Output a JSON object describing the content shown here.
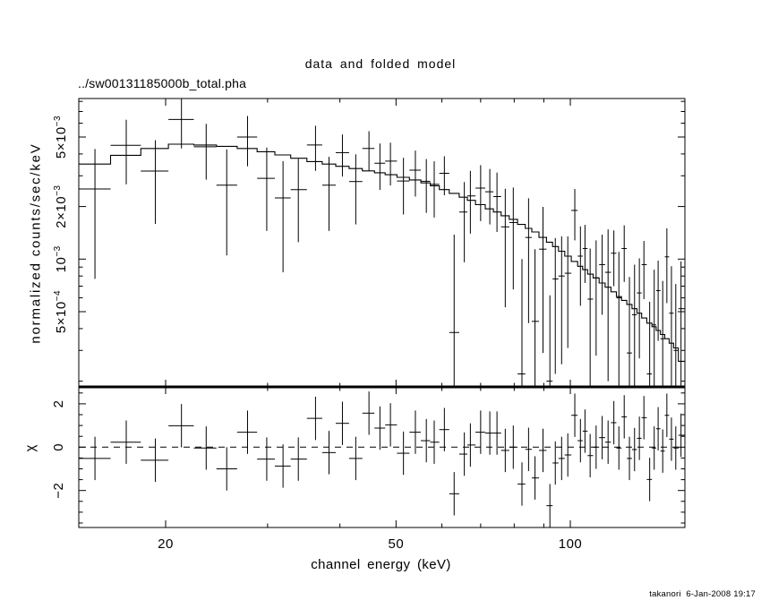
{
  "colors": {
    "foreground": "#000000",
    "background": "#ffffff"
  },
  "header": {
    "title": "data and folded model",
    "subtitle": "../sw00131185000b_total.pha"
  },
  "footer": {
    "timestamp": "takanori  6-Jan-2008 19:17"
  },
  "axes": {
    "x": {
      "label": "channel energy (keV)",
      "scale": "log",
      "min": 14.17,
      "max": 158,
      "major_ticks": [
        20,
        50,
        100
      ],
      "minor_ticks": [
        30,
        40,
        60,
        70,
        80,
        90
      ],
      "tick_labels": [
        {
          "value": 20,
          "label": "20"
        },
        {
          "value": 50,
          "label": "50"
        },
        {
          "value": 100,
          "label": "100"
        }
      ]
    },
    "y_top": {
      "label": "normalized counts/sec/keV",
      "scale": "log",
      "min": 0.000186,
      "max": 0.0083,
      "major_ticks": [
        0.005,
        0.002,
        0.001,
        0.0005
      ],
      "minor_ticks": [
        0.008,
        0.007,
        0.006,
        0.004,
        0.003,
        0.0009,
        0.0008,
        0.0007,
        0.0006,
        0.0004,
        0.0003,
        0.0002
      ],
      "tick_labels": [
        {
          "value": 0.005,
          "base": "5×10",
          "exp": "−3"
        },
        {
          "value": 0.002,
          "base": "2×10",
          "exp": "−3"
        },
        {
          "value": 0.001,
          "base": "10",
          "exp": "−3"
        },
        {
          "value": 0.0005,
          "base": "5×10",
          "exp": "−4"
        }
      ]
    },
    "y_bottom": {
      "label": "χ",
      "scale": "linear",
      "min": -3.7,
      "max": 2.78,
      "major_ticks": [
        2,
        0,
        -2
      ],
      "minor_ticks": [
        2.5,
        1.5,
        1,
        0.5,
        -0.5,
        -1,
        -1.5,
        -2.5,
        -3,
        -3.5
      ],
      "tick_labels": [
        {
          "value": 2,
          "label": "2"
        },
        {
          "value": 0,
          "label": "0"
        },
        {
          "value": -2,
          "label": "−2"
        }
      ],
      "zero_line": "dashed"
    }
  },
  "chart_data": {
    "type": "spectrum_with_residuals",
    "top_panel": {
      "kind": "histogram_model_plus_errorbar_data",
      "x_scale": "log",
      "y_scale": "log",
      "x_range": [
        14.17,
        158
      ],
      "y_range": [
        0.000186,
        0.0083
      ]
    },
    "bottom_panel": {
      "kind": "delchi_residuals",
      "y_range": [
        -3.7,
        2.78
      ],
      "chi_err": 1,
      "zero_line": true
    },
    "bin_columns": [
      "energy_keV",
      "rate_counts_s_keV",
      "rate_err",
      "model_rate",
      "chi"
    ],
    "bins": [
      [
        15.1,
        0.00252,
        0.00175,
        0.0035,
        -0.52
      ],
      [
        17.1,
        0.00448,
        0.0018,
        0.00393,
        0.23
      ],
      [
        19.2,
        0.00319,
        0.0016,
        0.0043,
        -0.6
      ],
      [
        21.3,
        0.0063,
        0.002,
        0.00455,
        0.99
      ],
      [
        23.5,
        0.0044,
        0.00155,
        0.0045,
        -0.04
      ],
      [
        25.5,
        0.00265,
        0.0016,
        0.00442,
        -1.0
      ],
      [
        27.7,
        0.005,
        0.0016,
        0.0043,
        0.69
      ],
      [
        29.9,
        0.0029,
        0.00145,
        0.00412,
        -0.55
      ],
      [
        31.9,
        0.00224,
        0.0014,
        0.00395,
        -0.87
      ],
      [
        33.9,
        0.0025,
        0.00125,
        0.00378,
        -0.55
      ],
      [
        36.3,
        0.0045,
        0.0013,
        0.00362,
        1.33
      ],
      [
        38.3,
        0.00265,
        0.0012,
        0.0035,
        -0.25
      ],
      [
        40.4,
        0.00407,
        0.0011,
        0.0034,
        1.1
      ],
      [
        42.6,
        0.00278,
        0.0012,
        0.0033,
        -0.52
      ],
      [
        44.9,
        0.0043,
        0.0011,
        0.0032,
        1.57
      ],
      [
        46.9,
        0.00354,
        0.00105,
        0.00312,
        0.88
      ],
      [
        48.9,
        0.00364,
        0.001,
        0.00304,
        1.03
      ],
      [
        51.5,
        0.0028,
        0.001,
        0.00294,
        -0.28
      ],
      [
        54.0,
        0.00323,
        0.00095,
        0.00284,
        0.69
      ],
      [
        56.4,
        0.00279,
        0.00095,
        0.00273,
        0.3
      ],
      [
        58.2,
        0.00268,
        0.00095,
        0.00263,
        0.23
      ],
      [
        60.6,
        0.0031,
        0.00078,
        0.0025,
        0.81
      ],
      [
        63.0,
        0.00038,
        0.001,
        0.00238,
        -2.15
      ],
      [
        65.6,
        0.00186,
        0.0009,
        0.00226,
        -0.32
      ],
      [
        67.2,
        0.0023,
        0.0009,
        0.00217,
        0.1
      ],
      [
        70.0,
        0.00255,
        0.0009,
        0.00205,
        0.69
      ],
      [
        72.6,
        0.00243,
        0.00085,
        0.00194,
        0.65
      ],
      [
        74.7,
        0.00228,
        0.00085,
        0.00186,
        0.65
      ],
      [
        77.2,
        0.00153,
        0.001,
        0.00177,
        -0.15
      ],
      [
        79.7,
        0.00162,
        0.00095,
        0.00169,
        0.0
      ],
      [
        82.5,
        0.00022,
        0.00078,
        0.00158,
        -1.7
      ],
      [
        84.7,
        0.00133,
        0.0009,
        0.0015,
        -0.1
      ],
      [
        86.9,
        0.00044,
        0.0007,
        0.00143,
        -1.42
      ],
      [
        89.7,
        0.00114,
        0.00085,
        0.00133,
        -0.15
      ],
      [
        92.2,
        0.0002,
        0.00042,
        0.00125,
        -2.7
      ],
      [
        94.2,
        0.00077,
        0.00055,
        0.00118,
        -0.73
      ],
      [
        96.6,
        0.0008,
        0.00055,
        0.00111,
        -0.52
      ],
      [
        99.0,
        0.00083,
        0.00052,
        0.00104,
        -0.36
      ],
      [
        101.8,
        0.0019,
        0.00062,
        0.00097,
        1.47
      ],
      [
        104.1,
        0.00104,
        0.0005,
        0.00091,
        0.3
      ],
      [
        106.0,
        0.00115,
        0.00042,
        0.00087,
        0.74
      ],
      [
        108.2,
        0.00059,
        0.00056,
        0.00082,
        -0.39
      ],
      [
        110.8,
        0.00078,
        0.0005,
        0.00078,
        0.0
      ],
      [
        113.5,
        0.00093,
        0.00045,
        0.00073,
        0.44
      ],
      [
        116.2,
        0.00084,
        0.00064,
        0.00069,
        0.23
      ],
      [
        118.9,
        0.00108,
        0.00038,
        0.00065,
        1.13
      ],
      [
        121.3,
        0.0006,
        0.0005,
        0.00061,
        -0.04
      ],
      [
        123.9,
        0.00115,
        0.00041,
        0.00058,
        1.4
      ],
      [
        126.5,
        0.00029,
        0.0005,
        0.00055,
        -0.52
      ],
      [
        129.1,
        0.00048,
        0.00045,
        0.00052,
        -0.11
      ],
      [
        131.6,
        0.00064,
        0.00037,
        0.00049,
        0.41
      ],
      [
        134.0,
        0.00093,
        0.00034,
        0.00046,
        1.36
      ],
      [
        137.1,
        0.00022,
        0.00035,
        0.00043,
        -1.49
      ],
      [
        139.6,
        0.00042,
        0.00045,
        0.00041,
        -0.04
      ],
      [
        141.8,
        0.00066,
        0.00032,
        0.00039,
        0.85
      ],
      [
        144.4,
        0.00035,
        0.0004,
        0.00037,
        -0.18
      ],
      [
        146.8,
        0.00103,
        0.00047,
        0.00035,
        1.47
      ],
      [
        149.5,
        0.00049,
        0.00042,
        0.00033,
        0.37
      ],
      [
        152.1,
        0.0003,
        0.00042,
        0.00031,
        -0.04
      ],
      [
        155.3,
        0.00052,
        0.00045,
        0.00026,
        0.55
      ]
    ]
  }
}
